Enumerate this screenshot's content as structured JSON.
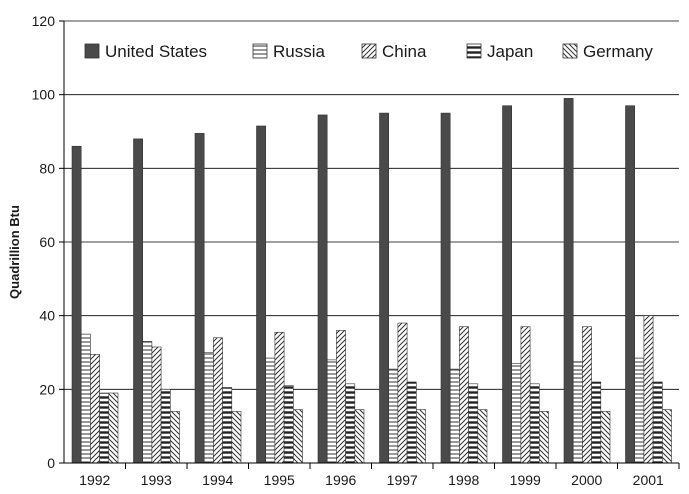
{
  "chart_data": {
    "type": "bar",
    "title": "",
    "xlabel": "",
    "ylabel": "Quadrillion Btu",
    "ylim": [
      0,
      120
    ],
    "yticks": [
      0,
      20,
      40,
      60,
      80,
      100,
      120
    ],
    "grid": true,
    "legend_position": "top",
    "categories": [
      "1992",
      "1993",
      "1994",
      "1995",
      "1996",
      "1997",
      "1998",
      "1999",
      "2000",
      "2001"
    ],
    "series": [
      {
        "name": "United States",
        "pattern": "solid",
        "values": [
          86,
          88,
          89.5,
          91.5,
          94.5,
          95,
          95,
          97,
          99,
          97
        ]
      },
      {
        "name": "Russia",
        "pattern": "horizontal",
        "values": [
          35,
          33,
          30,
          28.5,
          28,
          25.5,
          25.5,
          27,
          27.5,
          28.5
        ]
      },
      {
        "name": "China",
        "pattern": "diagonal",
        "values": [
          29.5,
          31.5,
          34,
          35.5,
          36,
          38,
          37,
          37,
          37,
          40
        ]
      },
      {
        "name": "Japan",
        "pattern": "thick-horizontal",
        "values": [
          19,
          20,
          20.5,
          21,
          21.5,
          22,
          21.5,
          21.5,
          22,
          22
        ]
      },
      {
        "name": "Germany",
        "pattern": "backdiagonal",
        "values": [
          19,
          14,
          14,
          14.5,
          14.5,
          14.5,
          14.5,
          14,
          14,
          14.5
        ]
      }
    ],
    "colors": {
      "bar_fill": "#4a4a4a",
      "bar_stroke": "#333333",
      "axis": "#000000",
      "grid": "#000000"
    }
  }
}
